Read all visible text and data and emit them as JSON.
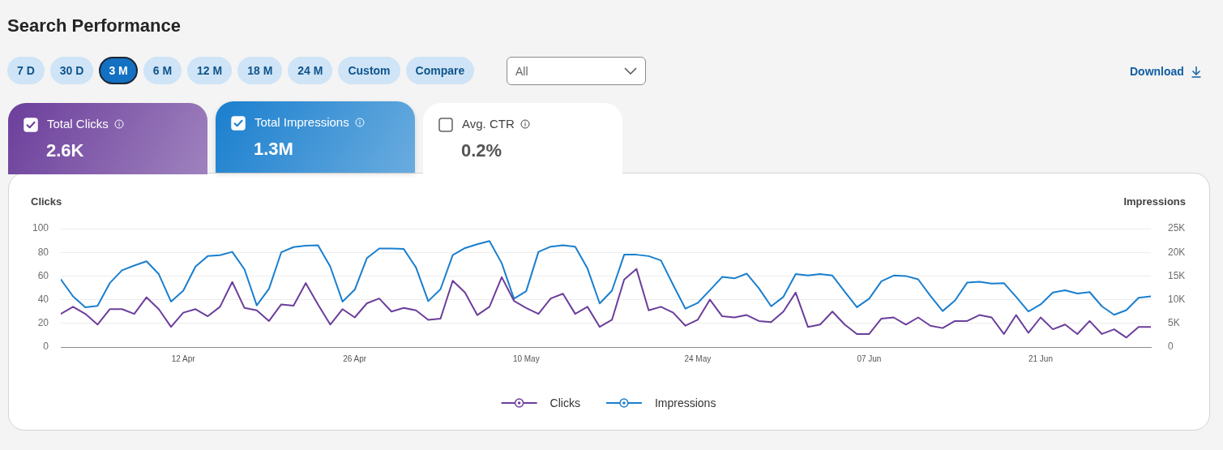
{
  "chart_data": {
    "type": "line",
    "title": "Search Performance",
    "ylabel": "Clicks",
    "y2label": "Impressions",
    "annotations": [
      "7 D",
      "30 D",
      "3 M",
      "6 M",
      "12 M",
      "18 M",
      "24 M",
      "Custom",
      "Compare",
      "All",
      "Download",
      "Total Clicks",
      "2.6K",
      "Total Impressions",
      "1.3M",
      "Avg. CTR",
      "0.2%"
    ],
    "x": [
      "--04-02",
      "--04-03",
      "--04-04",
      "--04-05",
      "--04-06",
      "--04-07",
      "--04-08",
      "--04-09",
      "--04-10",
      "--04-11",
      "--04-12",
      "--04-13",
      "--04-14",
      "--04-15",
      "--04-16",
      "--04-17",
      "--04-18",
      "--04-19",
      "--04-20",
      "--04-21",
      "--04-22",
      "--04-23",
      "--04-24",
      "--04-25",
      "--04-26",
      "--04-27",
      "--04-28",
      "--04-29",
      "--04-30",
      "--05-01",
      "--05-02",
      "--05-03",
      "--05-04",
      "--05-05",
      "--05-06",
      "--05-07",
      "--05-08",
      "--05-09",
      "--05-10",
      "--05-11",
      "--05-12",
      "--05-13",
      "--05-14",
      "--05-15",
      "--05-16",
      "--05-17",
      "--05-18",
      "--05-19",
      "--05-20",
      "--05-21",
      "--05-22",
      "--05-23",
      "--05-24",
      "--05-25",
      "--05-26",
      "--05-27",
      "--05-28",
      "--05-29",
      "--05-30",
      "--05-31",
      "--06-01",
      "--06-02",
      "--06-03",
      "--06-04",
      "--06-05",
      "--06-06",
      "--06-07",
      "--06-08",
      "--06-09",
      "--06-10",
      "--06-11",
      "--06-12",
      "--06-13",
      "--06-14",
      "--06-15",
      "--06-16",
      "--06-17",
      "--06-18",
      "--06-19",
      "--06-20",
      "--06-21",
      "--06-22",
      "--06-23",
      "--06-24",
      "--06-25",
      "--06-26",
      "--06-27",
      "--06-28",
      "--06-29",
      "--06-30"
    ],
    "series": [
      {
        "name": "Clicks",
        "color": "#6b3e9b",
        "values": [
          28,
          34,
          28,
          19,
          32,
          32,
          28,
          42,
          32,
          17,
          29,
          32,
          26,
          34,
          55,
          33,
          31,
          22,
          36,
          35,
          54,
          36,
          19,
          32,
          25,
          37,
          41,
          30,
          33,
          31,
          23,
          24,
          56,
          46,
          27,
          34,
          59,
          39,
          33,
          28,
          41,
          45,
          28,
          34,
          17,
          23,
          57,
          66,
          31,
          34,
          29,
          18,
          23,
          40,
          26,
          25,
          27,
          22,
          21,
          30,
          46,
          17,
          19,
          30,
          19,
          11,
          11,
          24,
          25,
          19,
          25,
          18,
          16,
          22,
          22,
          27,
          25,
          11,
          27,
          12,
          25,
          15,
          19,
          11,
          22,
          11,
          15,
          8,
          17,
          17
        ]
      },
      {
        "name": "Impressions",
        "color": "#1a7fce",
        "axis": "y2",
        "values": [
          14300,
          10700,
          8400,
          8700,
          13500,
          16200,
          17200,
          18100,
          15400,
          9600,
          11900,
          17000,
          19200,
          19400,
          20100,
          16400,
          8800,
          12300,
          20000,
          21100,
          21400,
          21500,
          17000,
          9600,
          12100,
          18800,
          20800,
          20800,
          20700,
          16800,
          9700,
          12200,
          19400,
          20900,
          21700,
          22400,
          17700,
          10200,
          11800,
          20100,
          21200,
          21500,
          21200,
          16600,
          9200,
          11900,
          19500,
          19500,
          19200,
          18300,
          13100,
          8100,
          9300,
          12000,
          14800,
          14500,
          15500,
          12400,
          8600,
          10600,
          15400,
          15100,
          15400,
          15100,
          11700,
          8400,
          10200,
          13900,
          15100,
          15000,
          14300,
          10800,
          7600,
          9800,
          13600,
          13800,
          13400,
          13500,
          10600,
          7500,
          9000,
          11500,
          12000,
          11300,
          11600,
          8600,
          6800,
          7800,
          10400,
          10700
        ]
      }
    ],
    "xlim": [
      "--04-02",
      "--06-30"
    ],
    "xticks": [
      {
        "value": "--04-12",
        "label": "12 Apr"
      },
      {
        "value": "--04-26",
        "label": "26 Apr"
      },
      {
        "value": "--05-10",
        "label": "10 May"
      },
      {
        "value": "--05-24",
        "label": "24 May"
      },
      {
        "value": "--06-07",
        "label": "07 Jun"
      },
      {
        "value": "--06-21",
        "label": "21 Jun"
      }
    ],
    "ylim": [
      0,
      100
    ],
    "yticks": [
      0,
      20,
      40,
      60,
      80,
      100
    ],
    "y2lim": [
      0,
      25000
    ],
    "y2ticks": [
      0,
      {
        "value": 5000,
        "label": "5K"
      },
      {
        "value": 10000,
        "label": "10K"
      },
      {
        "value": 15000,
        "label": "15K"
      },
      {
        "value": 20000,
        "label": "20K"
      },
      {
        "value": 25000,
        "label": "25K"
      }
    ],
    "grid": "y",
    "legend": "bottom",
    "line_style": "solid"
  }
}
